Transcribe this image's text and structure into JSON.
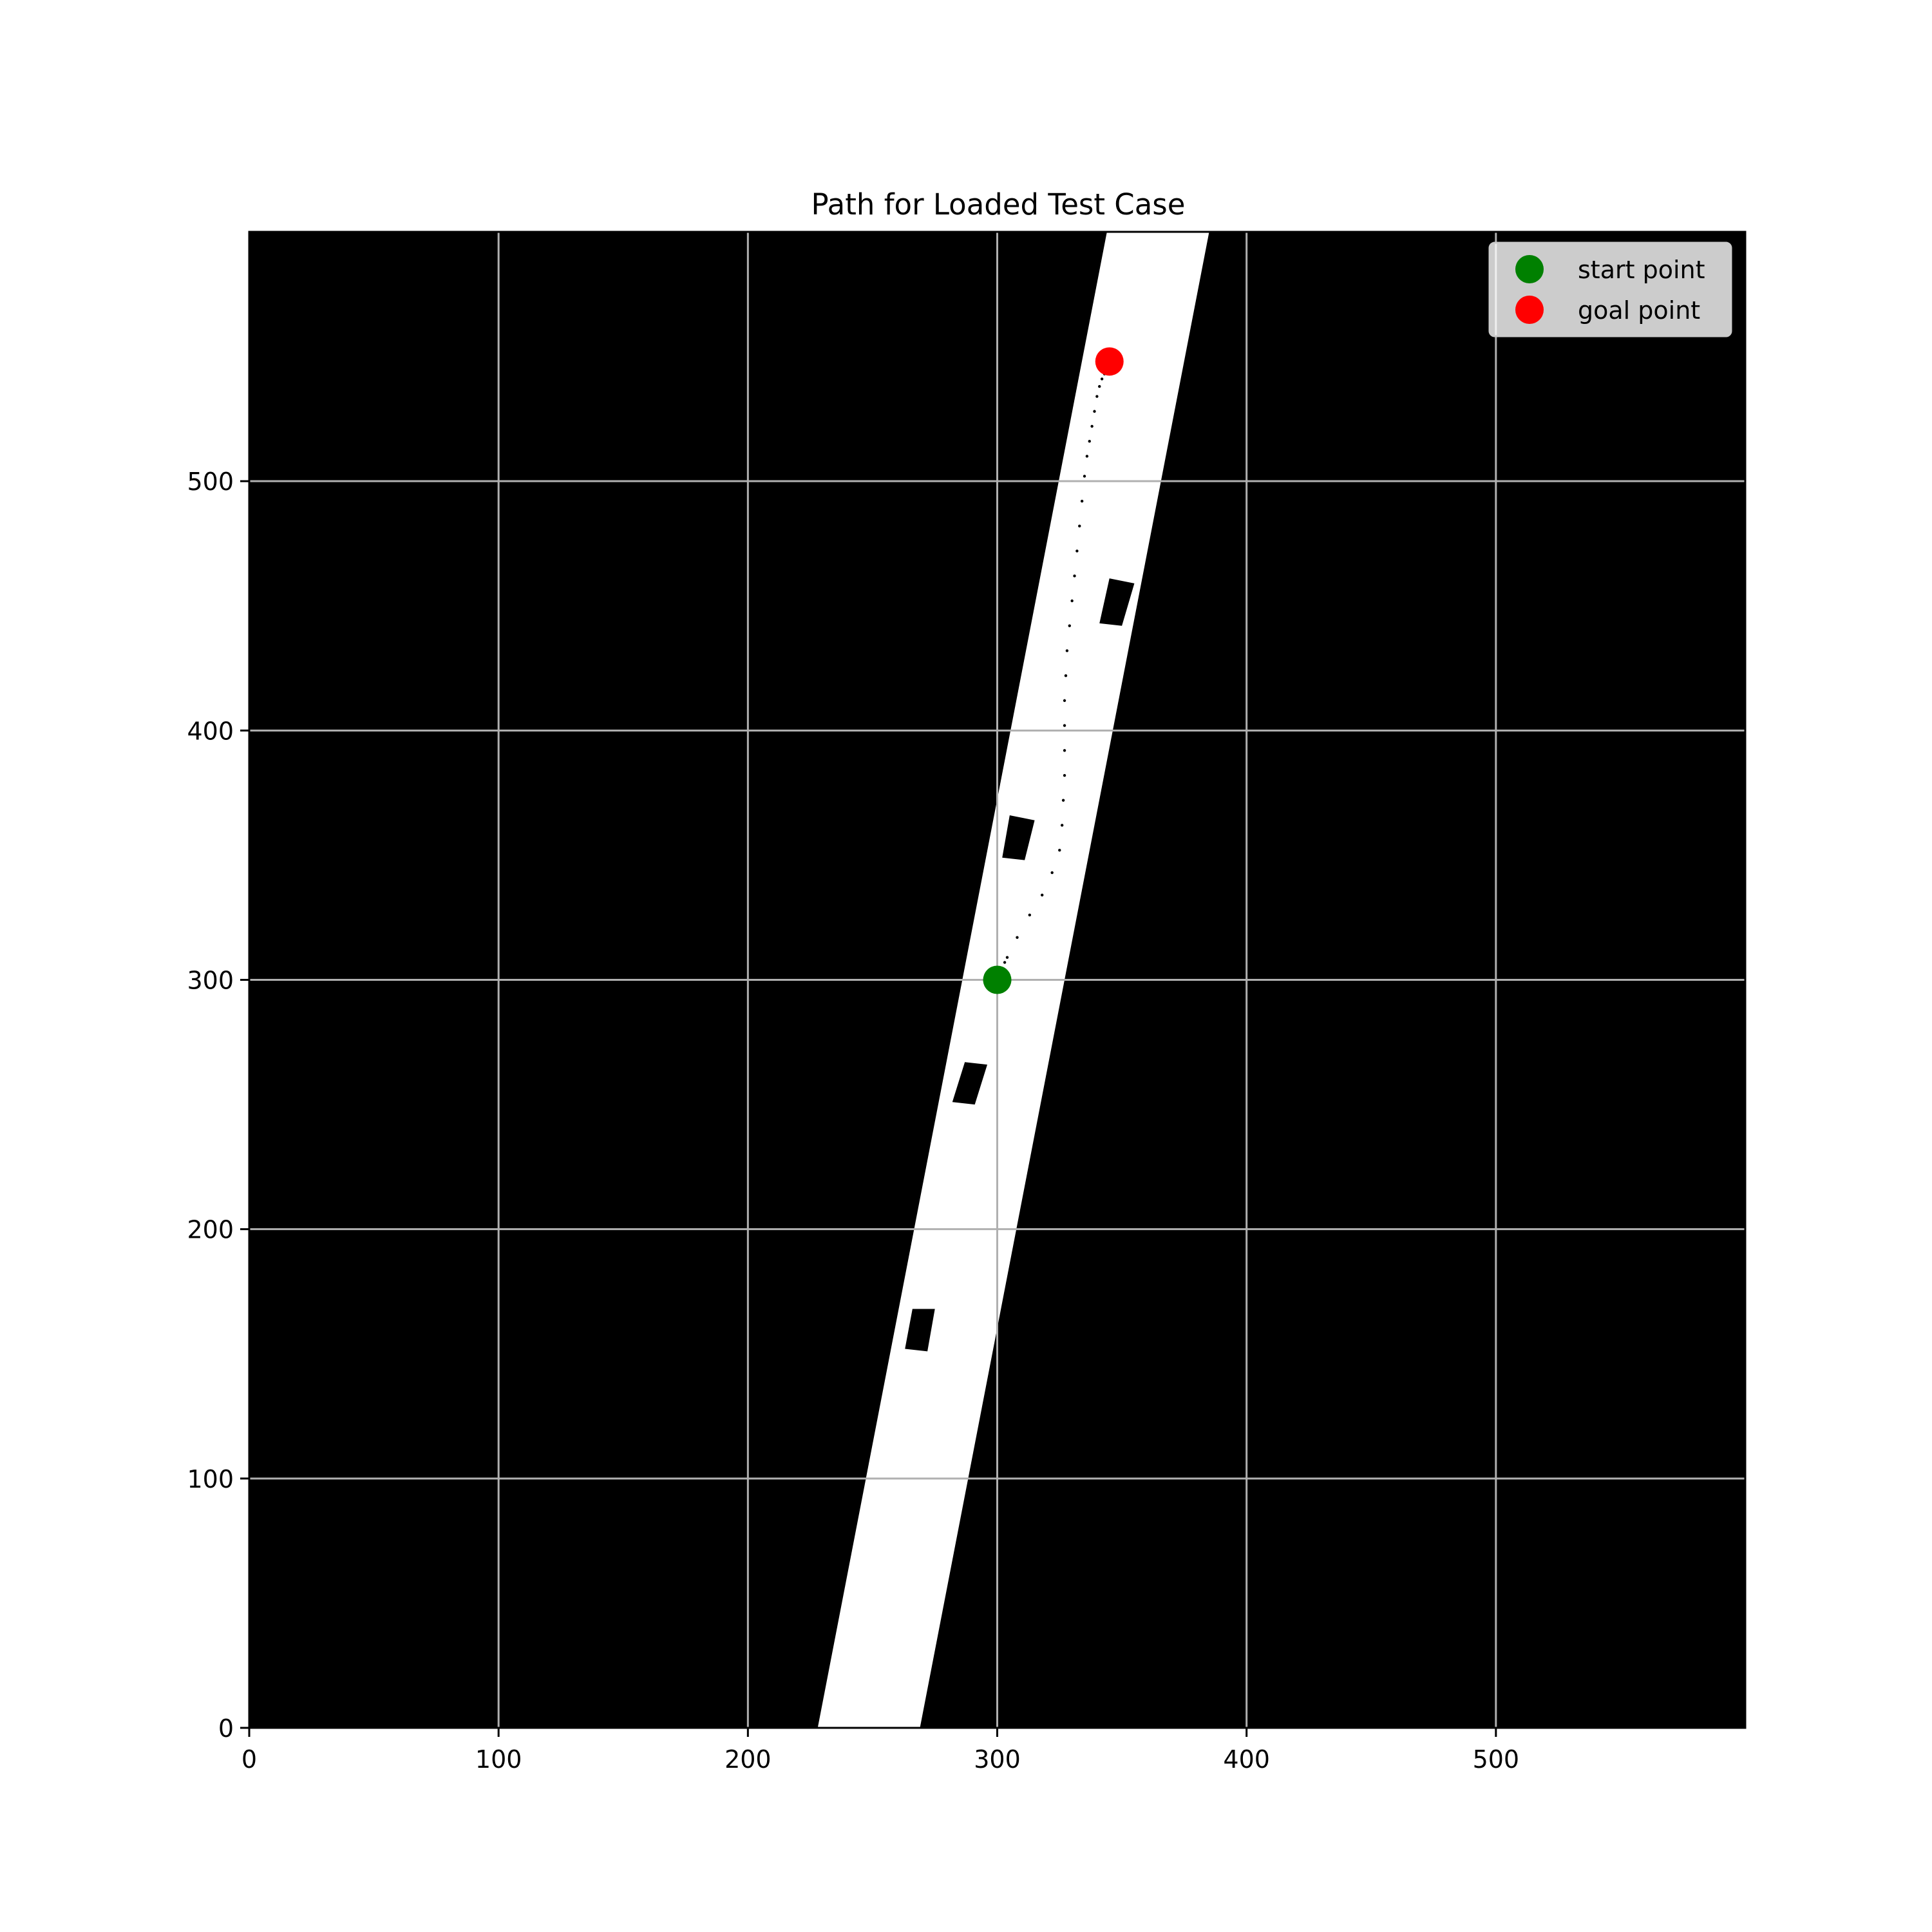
{
  "chart_data": {
    "type": "scatter",
    "title": "Path for Loaded Test Case",
    "xlabel": "",
    "ylabel": "",
    "xlim": [
      0,
      600
    ],
    "ylim": [
      0,
      600
    ],
    "x_ticks": [
      0,
      100,
      200,
      300,
      400,
      500
    ],
    "y_ticks": [
      0,
      100,
      200,
      300,
      400,
      500
    ],
    "grid": true,
    "legend_position": "top-right",
    "background_color": "#000000",
    "road": {
      "color": "#ffffff",
      "left_edge": [
        [
          228,
          0
        ],
        [
          344,
          600
        ]
      ],
      "right_edge": [
        [
          269,
          0
        ],
        [
          385,
          600
        ]
      ]
    },
    "obstacles": {
      "color": "#000000",
      "polygons": [
        [
          [
            263,
            152
          ],
          [
            266,
            168
          ],
          [
            275,
            168
          ],
          [
            272,
            151
          ]
        ],
        [
          [
            282,
            251
          ],
          [
            287,
            267
          ],
          [
            296,
            266
          ],
          [
            291,
            250
          ]
        ],
        [
          [
            302,
            349
          ],
          [
            305,
            366
          ],
          [
            315,
            364
          ],
          [
            311,
            348
          ]
        ],
        [
          [
            341,
            443
          ],
          [
            345,
            461
          ],
          [
            355,
            459
          ],
          [
            350,
            442
          ]
        ]
      ]
    },
    "path": {
      "color": "#000000",
      "x": [
        300,
        303,
        304,
        308,
        313,
        318,
        322,
        325,
        326,
        326.5,
        327,
        327,
        327,
        327,
        327.5,
        328,
        329,
        330,
        331,
        332,
        333,
        334,
        335,
        336,
        337,
        338,
        339,
        340,
        341,
        342,
        343,
        344,
        345
      ],
      "y": [
        300,
        307,
        309,
        317,
        326,
        334,
        343,
        352,
        362,
        372,
        382,
        392,
        402,
        412,
        422,
        432,
        442,
        452,
        462,
        472,
        482,
        492,
        502,
        510,
        516,
        522,
        528,
        534,
        538,
        541,
        543,
        545,
        548
      ]
    },
    "series": [
      {
        "name": "start point",
        "color": "#008000",
        "x": [
          300
        ],
        "y": [
          300
        ]
      },
      {
        "name": "goal point",
        "color": "#ff0000",
        "x": [
          345
        ],
        "y": [
          548
        ]
      }
    ]
  }
}
